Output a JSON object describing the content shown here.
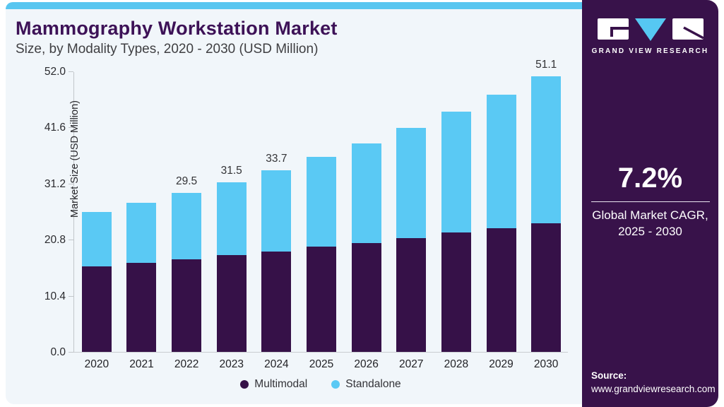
{
  "header": {
    "title": "Mammography Workstation Market",
    "subtitle": "Size, by Modality Types, 2020 - 2030 (USD Million)"
  },
  "panel": {
    "logo_text": "GRAND VIEW RESEARCH",
    "cagr_value": "7.2%",
    "cagr_label_line1": "Global Market CAGR,",
    "cagr_label_line2": "2025 - 2030",
    "source_label": "Source:",
    "source_url": "www.grandviewresearch.com",
    "colors": {
      "background": "#38124a",
      "accent_blue": "#56c8f2"
    }
  },
  "chart_data": {
    "type": "bar",
    "stacked": true,
    "title": "Mammography Workstation Market Size, by Modality Types, 2020 - 2030 (USD Million)",
    "xlabel": "",
    "ylabel": "Market Size (USD Million)",
    "categories": [
      "2020",
      "2021",
      "2022",
      "2023",
      "2024",
      "2025",
      "2026",
      "2027",
      "2028",
      "2029",
      "2030"
    ],
    "series": [
      {
        "name": "Multimodal",
        "color": "#361148",
        "values": [
          15.8,
          16.5,
          17.2,
          17.9,
          18.6,
          19.5,
          20.2,
          21.1,
          22.1,
          22.9,
          23.8
        ]
      },
      {
        "name": "Standalone",
        "color": "#5ac9f4",
        "values": [
          10.1,
          11.1,
          12.3,
          13.6,
          15.1,
          16.6,
          18.5,
          20.4,
          22.4,
          24.8,
          27.3
        ]
      }
    ],
    "stack_totals": [
      25.9,
      27.6,
      29.5,
      31.5,
      33.7,
      36.1,
      38.7,
      41.5,
      44.5,
      47.7,
      51.1
    ],
    "bar_total_labels": {
      "2022": "29.5",
      "2023": "31.5",
      "2024": "33.7",
      "2030": "51.1"
    },
    "yticks": [
      "0.0",
      "10.4",
      "20.8",
      "31.2",
      "41.6",
      "52.0"
    ],
    "ylim": [
      0,
      52.0
    ],
    "grid": false,
    "legend_position": "bottom"
  }
}
